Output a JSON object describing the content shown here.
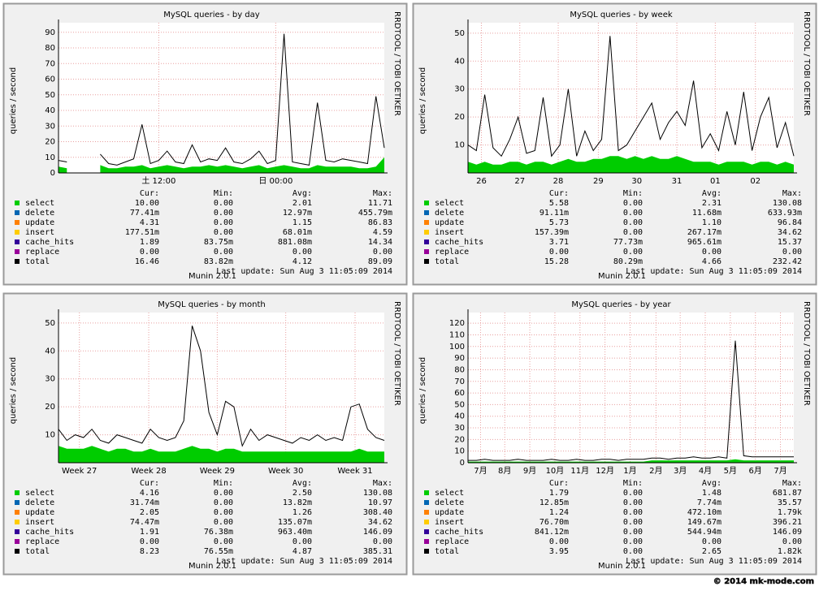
{
  "panels": [
    {
      "chart_data": {
        "type": "area",
        "title": "MySQL queries - by day",
        "y_label": "queries / second",
        "xlim": [
          0,
          39
        ],
        "ylim": [
          0,
          93
        ],
        "yticks": [
          0,
          10,
          20,
          30,
          40,
          50,
          60,
          70,
          80,
          90
        ],
        "grid": true,
        "xticks": [
          {
            "value": 12,
            "label": "土 12:00"
          },
          {
            "value": 26,
            "label": "日 00:00"
          }
        ],
        "series": [
          {
            "name": "select",
            "color": "#00cc00",
            "values": [
              4,
              3,
              null,
              null,
              null,
              5,
              3,
              3,
              4,
              4,
              5,
              3,
              4,
              5,
              4,
              3,
              4,
              4,
              5,
              4,
              5,
              4,
              3,
              4,
              5,
              3,
              4,
              5,
              4,
              3,
              3,
              5,
              4,
              4,
              4,
              4,
              3,
              3,
              4,
              10
            ],
            "stats": [
              "10.00",
              "0.00",
              "2.01",
              "11.71"
            ]
          },
          {
            "name": "delete",
            "color": "#0066b3",
            "stats": [
              "77.41m",
              "0.00",
              "12.97m",
              "455.79m"
            ]
          },
          {
            "name": "update",
            "color": "#ff8000",
            "stats": [
              "4.31",
              "0.00",
              "1.15",
              "86.83"
            ]
          },
          {
            "name": "insert",
            "color": "#ffcc00",
            "stats": [
              "177.51m",
              "0.00",
              "68.01m",
              "4.59"
            ]
          },
          {
            "name": "cache_hits",
            "color": "#330099",
            "stats": [
              "1.89",
              "83.75m",
              "881.08m",
              "14.34"
            ]
          },
          {
            "name": "replace",
            "color": "#990099",
            "stats": [
              "0.00",
              "0.00",
              "0.00",
              "0.00"
            ]
          },
          {
            "name": "total",
            "color": "#000000",
            "values": [
              8,
              7,
              null,
              null,
              null,
              12,
              6,
              5,
              7,
              9,
              31,
              6,
              8,
              14,
              7,
              6,
              18,
              7,
              9,
              8,
              16,
              7,
              6,
              9,
              14,
              6,
              8,
              89,
              7,
              6,
              5,
              45,
              8,
              7,
              9,
              8,
              7,
              6,
              49,
              16
            ],
            "stats": [
              "16.46",
              "83.82m",
              "4.12",
              "89.09"
            ]
          }
        ],
        "legend_headers": [
          "Cur:",
          "Min:",
          "Avg:",
          "Max:"
        ],
        "last_update": "Last update: Sun Aug  3 11:05:09 2014",
        "side_text": "RRDTOOL / TOBI OETIKER",
        "footer": "Munin 2.0.1"
      }
    },
    {
      "chart_data": {
        "type": "area",
        "title": "MySQL queries - by week",
        "y_label": "queries / second",
        "xlim": [
          0,
          39
        ],
        "ylim": [
          0,
          52
        ],
        "yticks": [
          10,
          20,
          30,
          40,
          50
        ],
        "grid": true,
        "xticks": [
          {
            "value": 1.6,
            "label": "26"
          },
          {
            "value": 6.2,
            "label": "27"
          },
          {
            "value": 10.8,
            "label": "28"
          },
          {
            "value": 15.6,
            "label": "29"
          },
          {
            "value": 20.2,
            "label": "30"
          },
          {
            "value": 25,
            "label": "31"
          },
          {
            "value": 29.6,
            "label": "01"
          },
          {
            "value": 34.4,
            "label": "02"
          }
        ],
        "series": [
          {
            "name": "select",
            "color": "#00cc00",
            "values": [
              4,
              3,
              4,
              3,
              3,
              4,
              4,
              3,
              4,
              4,
              3,
              4,
              5,
              4,
              4,
              5,
              5,
              6,
              6,
              5,
              6,
              5,
              6,
              5,
              5,
              6,
              5,
              4,
              4,
              4,
              3,
              4,
              4,
              4,
              3,
              4,
              4,
              3,
              4,
              3
            ],
            "stats": [
              "5.58",
              "0.00",
              "2.31",
              "130.08"
            ]
          },
          {
            "name": "delete",
            "color": "#0066b3",
            "stats": [
              "91.11m",
              "0.00",
              "11.68m",
              "633.93m"
            ]
          },
          {
            "name": "update",
            "color": "#ff8000",
            "stats": [
              "5.73",
              "0.00",
              "1.10",
              "96.84"
            ]
          },
          {
            "name": "insert",
            "color": "#ffcc00",
            "stats": [
              "157.39m",
              "0.00",
              "267.17m",
              "34.62"
            ]
          },
          {
            "name": "cache_hits",
            "color": "#330099",
            "stats": [
              "3.71",
              "77.73m",
              "965.61m",
              "15.37"
            ]
          },
          {
            "name": "replace",
            "color": "#990099",
            "stats": [
              "0.00",
              "0.00",
              "0.00",
              "0.00"
            ]
          },
          {
            "name": "total",
            "color": "#000000",
            "values": [
              10,
              8,
              28,
              9,
              6,
              12,
              20,
              7,
              8,
              27,
              6,
              10,
              30,
              6,
              15,
              8,
              12,
              49,
              8,
              10,
              15,
              20,
              25,
              12,
              18,
              22,
              17,
              33,
              9,
              14,
              8,
              22,
              10,
              29,
              8,
              20,
              27,
              9,
              18,
              6
            ],
            "stats": [
              "15.28",
              "80.29m",
              "4.66",
              "232.42"
            ]
          }
        ],
        "legend_headers": [
          "Cur:",
          "Min:",
          "Avg:",
          "Max:"
        ],
        "last_update": "Last update: Sun Aug  3 11:05:09 2014",
        "side_text": "RRDTOOL / TOBI OETIKER",
        "footer": "Munin 2.0.1"
      }
    },
    {
      "chart_data": {
        "type": "area",
        "title": "MySQL queries - by month",
        "y_label": "queries / second",
        "xlim": [
          0,
          39
        ],
        "ylim": [
          0,
          52
        ],
        "yticks": [
          10,
          20,
          30,
          40,
          50
        ],
        "grid": true,
        "xticks": [
          {
            "value": 2.5,
            "label": "Week 27"
          },
          {
            "value": 10.8,
            "label": "Week 28"
          },
          {
            "value": 19,
            "label": "Week 29"
          },
          {
            "value": 27.2,
            "label": "Week 30"
          },
          {
            "value": 35.5,
            "label": "Week 31"
          }
        ],
        "series": [
          {
            "name": "select",
            "color": "#00cc00",
            "values": [
              6,
              5,
              5,
              5,
              6,
              5,
              4,
              5,
              5,
              4,
              4,
              5,
              4,
              4,
              4,
              5,
              6,
              5,
              5,
              4,
              5,
              5,
              4,
              4,
              4,
              4,
              4,
              4,
              4,
              4,
              4,
              4,
              4,
              4,
              4,
              4,
              5,
              4,
              4,
              4
            ],
            "stats": [
              "4.16",
              "0.00",
              "2.50",
              "130.08"
            ]
          },
          {
            "name": "delete",
            "color": "#0066b3",
            "stats": [
              "31.74m",
              "0.00",
              "13.82m",
              "10.97"
            ]
          },
          {
            "name": "update",
            "color": "#ff8000",
            "stats": [
              "2.05",
              "0.00",
              "1.26",
              "308.40"
            ]
          },
          {
            "name": "insert",
            "color": "#ffcc00",
            "stats": [
              "74.47m",
              "0.00",
              "135.07m",
              "34.62"
            ]
          },
          {
            "name": "cache_hits",
            "color": "#330099",
            "stats": [
              "1.91",
              "76.38m",
              "963.40m",
              "146.09"
            ]
          },
          {
            "name": "replace",
            "color": "#990099",
            "stats": [
              "0.00",
              "0.00",
              "0.00",
              "0.00"
            ]
          },
          {
            "name": "total",
            "color": "#000000",
            "values": [
              12,
              8,
              10,
              9,
              12,
              8,
              7,
              10,
              9,
              8,
              7,
              12,
              9,
              8,
              9,
              15,
              49,
              40,
              18,
              10,
              22,
              20,
              6,
              12,
              8,
              10,
              9,
              8,
              7,
              9,
              8,
              10,
              8,
              9,
              8,
              20,
              21,
              12,
              9,
              8
            ],
            "stats": [
              "8.23",
              "76.55m",
              "4.87",
              "385.31"
            ]
          }
        ],
        "legend_headers": [
          "Cur:",
          "Min:",
          "Avg:",
          "Max:"
        ],
        "last_update": "Last update: Sun Aug  3 11:05:09 2014",
        "side_text": "RRDTOOL / TOBI OETIKER",
        "footer": "Munin 2.0.1"
      }
    },
    {
      "chart_data": {
        "type": "area",
        "title": "MySQL queries - by year",
        "y_label": "queries / second",
        "xlim": [
          0,
          39
        ],
        "ylim": [
          0,
          125
        ],
        "yticks": [
          0,
          10,
          20,
          30,
          40,
          50,
          60,
          70,
          80,
          90,
          100,
          110,
          120
        ],
        "grid": true,
        "xticks": [
          {
            "value": 1.5,
            "label": "7月"
          },
          {
            "value": 4.4,
            "label": "8月"
          },
          {
            "value": 7.4,
            "label": "9月"
          },
          {
            "value": 10.4,
            "label": "10月"
          },
          {
            "value": 13.4,
            "label": "11月"
          },
          {
            "value": 16.4,
            "label": "12月"
          },
          {
            "value": 19.4,
            "label": "1月"
          },
          {
            "value": 22.5,
            "label": "2月"
          },
          {
            "value": 25.4,
            "label": "3月"
          },
          {
            "value": 28.4,
            "label": "4月"
          },
          {
            "value": 31.4,
            "label": "5月"
          },
          {
            "value": 34.4,
            "label": "6月"
          },
          {
            "value": 37.4,
            "label": "7月"
          }
        ],
        "series": [
          {
            "name": "select",
            "color": "#00cc00",
            "values": [
              1,
              1,
              1,
              1,
              1,
              1,
              1,
              1,
              1,
              1,
              1,
              1,
              1,
              1,
              1,
              1,
              1,
              1,
              1,
              1,
              1,
              1,
              2,
              2,
              2,
              2,
              2,
              2,
              2,
              2,
              2,
              2,
              3,
              2,
              2,
              2,
              2,
              2,
              2,
              2
            ],
            "stats": [
              "1.79",
              "0.00",
              "1.48",
              "681.87"
            ]
          },
          {
            "name": "delete",
            "color": "#0066b3",
            "stats": [
              "12.85m",
              "0.00",
              "7.74m",
              "35.57"
            ]
          },
          {
            "name": "update",
            "color": "#ff8000",
            "stats": [
              "1.24",
              "0.00",
              "472.10m",
              "1.79k"
            ]
          },
          {
            "name": "insert",
            "color": "#ffcc00",
            "stats": [
              "76.70m",
              "0.00",
              "149.67m",
              "396.21"
            ]
          },
          {
            "name": "cache_hits",
            "color": "#330099",
            "stats": [
              "841.12m",
              "0.00",
              "544.94m",
              "146.09"
            ]
          },
          {
            "name": "replace",
            "color": "#990099",
            "stats": [
              "0.00",
              "0.00",
              "0.00",
              "0.00"
            ]
          },
          {
            "name": "total",
            "color": "#000000",
            "values": [
              2,
              2,
              3,
              2,
              2,
              2,
              3,
              2,
              2,
              2,
              3,
              2,
              2,
              3,
              2,
              2,
              3,
              3,
              2,
              3,
              3,
              3,
              4,
              4,
              3,
              4,
              4,
              5,
              4,
              4,
              5,
              4,
              105,
              6,
              5,
              5,
              5,
              5,
              5,
              5
            ],
            "stats": [
              "3.95",
              "0.00",
              "2.65",
              "1.82k"
            ]
          }
        ],
        "legend_headers": [
          "Cur:",
          "Min:",
          "Avg:",
          "Max:"
        ],
        "last_update": "Last update: Sun Aug  3 11:05:09 2014",
        "side_text": "RRDTOOL / TOBI OETIKER",
        "footer": "Munin 2.0.1"
      }
    }
  ],
  "credit": "© 2014 mk-mode.com"
}
